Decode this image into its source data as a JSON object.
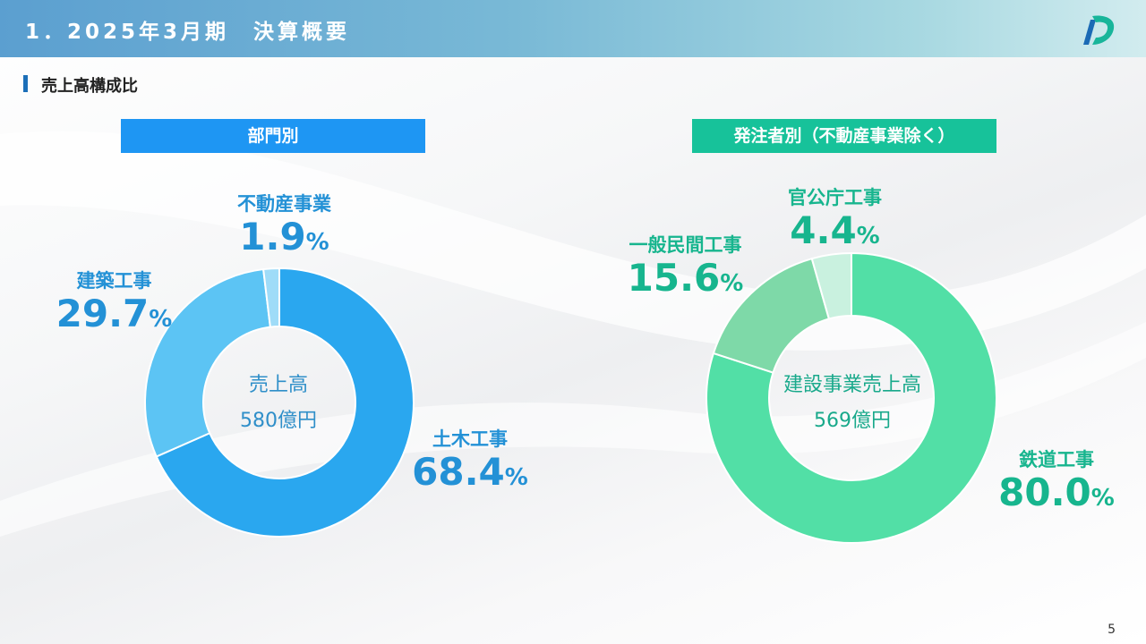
{
  "header": {
    "title": "1．2025年3月期　決算概要"
  },
  "section": {
    "title": "売上高構成比"
  },
  "page_number": "5",
  "colors": {
    "blue_accent": "#1e96f3",
    "green_accent": "#17c29a",
    "civil": "#2aa7ef",
    "building": "#5cc4f4",
    "realestate": "#9fdcf8",
    "railway": "#52dfa6",
    "private": "#7ed9a8",
    "public": "#c9f1df"
  },
  "chart_data": [
    {
      "type": "pie",
      "title": "部門別",
      "center_label": "売上高",
      "center_value": "580億円",
      "slices": [
        {
          "label": "土木工事",
          "value": 68.4
        },
        {
          "label": "建築工事",
          "value": 29.7
        },
        {
          "label": "不動産事業",
          "value": 1.9
        }
      ]
    },
    {
      "type": "pie",
      "title": "発注者別（不動産事業除く）",
      "center_label": "建設事業売上高",
      "center_value": "569億円",
      "slices": [
        {
          "label": "鉄道工事",
          "value": 80.0
        },
        {
          "label": "一般民間工事",
          "value": 15.6
        },
        {
          "label": "官公庁工事",
          "value": 4.4
        }
      ]
    }
  ],
  "labels": {
    "c0s0": {
      "name": "土木工事",
      "val": "68.4",
      "unit": "%"
    },
    "c0s1": {
      "name": "建築工事",
      "val": "29.7",
      "unit": "%"
    },
    "c0s2": {
      "name": "不動産事業",
      "val": "1.9",
      "unit": "%"
    },
    "c1s0": {
      "name": "鉄道工事",
      "val": "80.0",
      "unit": "%"
    },
    "c1s1": {
      "name": "一般民間工事",
      "val": "15.6",
      "unit": "%"
    },
    "c1s2": {
      "name": "官公庁工事",
      "val": "4.4",
      "unit": "%"
    }
  }
}
